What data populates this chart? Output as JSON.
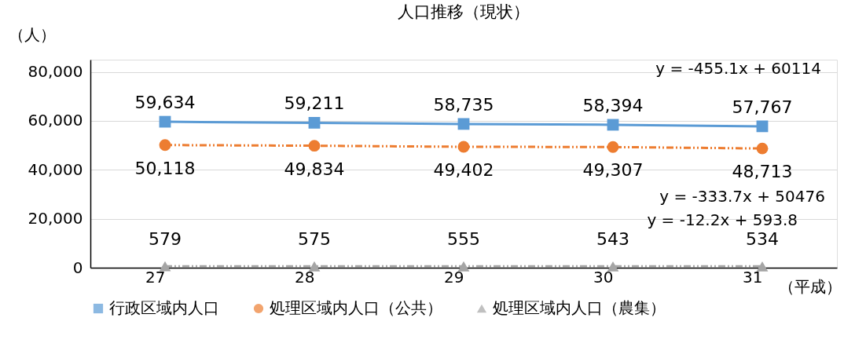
{
  "chart_data": {
    "type": "line",
    "title": "人口推移（現状）",
    "ylabel": "（人）",
    "xlabel": "（平成）",
    "categories": [
      "27",
      "28",
      "29",
      "30",
      "31"
    ],
    "series": [
      {
        "name": "行政区域内人口",
        "color": "#5b9bd5",
        "marker": "square",
        "line_style": "solid",
        "values": [
          59634,
          59211,
          58735,
          58394,
          57767
        ],
        "value_labels": [
          "59,634",
          "59,211",
          "58,735",
          "58,394",
          "57,767"
        ]
      },
      {
        "name": "処理区域内人口（公共）",
        "color": "#ed7d31",
        "marker": "circle",
        "line_style": "dashed",
        "values": [
          50118,
          49834,
          49402,
          49307,
          48713
        ],
        "value_labels": [
          "50,118",
          "49,834",
          "49,402",
          "49,307",
          "48,713"
        ]
      },
      {
        "name": "処理区域内人口（農集）",
        "color": "#a5a5a5",
        "marker": "triangle",
        "line_style": "dashed",
        "values": [
          579,
          575,
          555,
          543,
          534
        ],
        "value_labels": [
          "579",
          "575",
          "555",
          "543",
          "534"
        ]
      }
    ],
    "ylim": [
      0,
      85000
    ],
    "yticks": [
      0,
      {
        "value": 20000,
        "label": "20,000"
      },
      {
        "value": 40000,
        "label": "40,000"
      },
      {
        "value": 60000,
        "label": "60,000"
      },
      {
        "value": 80000,
        "label": "80,000"
      }
    ],
    "grid": "y",
    "legend": "bottom",
    "annotations": [
      "y = -455.1x + 60114",
      "y = -333.7x + 50476",
      "y = -12.2x + 593.8"
    ]
  }
}
